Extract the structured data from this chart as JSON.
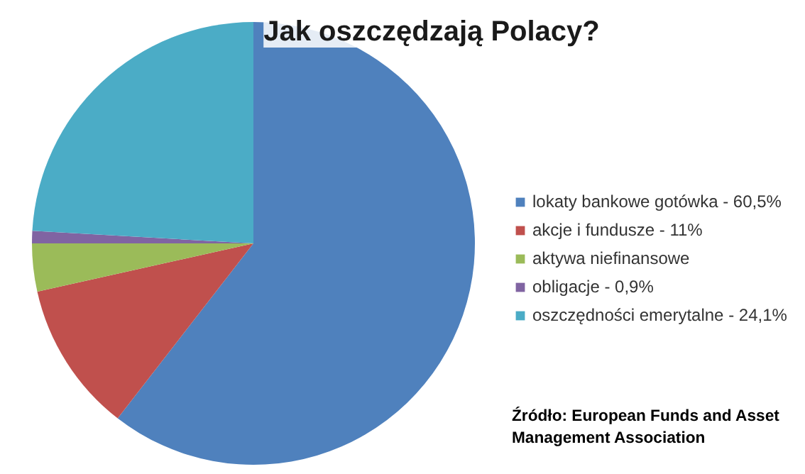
{
  "chart_data": {
    "type": "pie",
    "title": "Jak oszczędzają Polacy?",
    "categories": [
      "lokaty bankowe gotówka - 60,5%",
      "akcje i fundusze - 11%",
      "aktywa niefinansowe",
      "obligacje - 0,9%",
      "oszczędności emerytalne - 24,1%"
    ],
    "values": [
      60.5,
      11,
      3.5,
      0.9,
      24.1
    ],
    "colors": [
      "#4f81bd",
      "#c0504d",
      "#9bbb59",
      "#8064a2",
      "#4bacc6"
    ],
    "legend": "right",
    "annotations": [
      "Źródło: European Funds and Asset\nManagement Association"
    ]
  }
}
